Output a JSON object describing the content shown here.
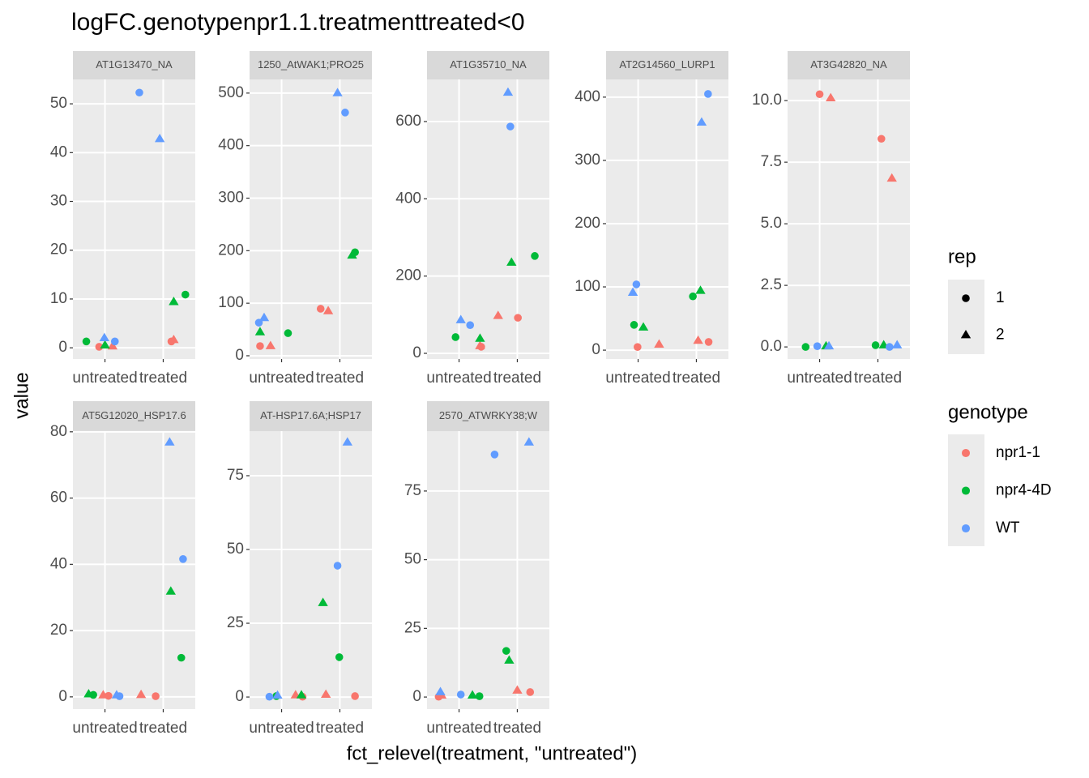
{
  "chart_data": {
    "type": "scatter",
    "title": "logFC.genotypenpr1.1.treatmenttreated<0",
    "x_label": "fct_relevel(treatment, \"untreated\")",
    "y_label": "value",
    "categories": [
      "untreated",
      "treated"
    ],
    "xlim": [
      0.45,
      2.55
    ],
    "grid": true,
    "legends": [
      {
        "title": "rep",
        "entries": [
          {
            "name": "1",
            "shape": "circle"
          },
          {
            "name": "2",
            "shape": "triangle"
          }
        ]
      },
      {
        "title": "genotype",
        "entries": [
          {
            "name": "npr1-1",
            "color": "#F8766D"
          },
          {
            "name": "npr4-4D",
            "color": "#00BA38"
          },
          {
            "name": "WT",
            "color": "#619CFF"
          }
        ]
      }
    ],
    "panels": [
      {
        "strip": "AT1G13470_NA",
        "ylim": [
          -2.3,
          55
        ],
        "yticks": [
          0,
          10,
          20,
          30,
          40,
          50
        ],
        "series": [
          {
            "genotype": "npr1-1",
            "rep": "1",
            "x": [
              0.9,
              2.14
            ],
            "values": [
              0.2,
              1.3
            ]
          },
          {
            "genotype": "npr1-1",
            "rep": "2",
            "x": [
              1.13,
              2.18
            ],
            "values": [
              0.3,
              1.6
            ]
          },
          {
            "genotype": "npr4-4D",
            "rep": "1",
            "x": [
              0.68,
              2.38
            ],
            "values": [
              1.3,
              10.9
            ]
          },
          {
            "genotype": "npr4-4D",
            "rep": "2",
            "x": [
              1.0,
              2.18
            ],
            "values": [
              0.5,
              9.4
            ]
          },
          {
            "genotype": "WT",
            "rep": "1",
            "x": [
              1.17,
              1.59
            ],
            "values": [
              1.3,
              52.3
            ]
          },
          {
            "genotype": "WT",
            "rep": "2",
            "x": [
              0.99,
              1.94
            ],
            "values": [
              2.0,
              42.8
            ]
          }
        ]
      },
      {
        "strip": "1250_AtWAK1;PRO25",
        "ylim": [
          -6.2,
          526
        ],
        "yticks": [
          0,
          100,
          200,
          300,
          400,
          500
        ],
        "series": [
          {
            "genotype": "npr1-1",
            "rep": "1",
            "x": [
              0.63,
              1.67
            ],
            "values": [
              18.5,
              89.5
            ]
          },
          {
            "genotype": "npr1-1",
            "rep": "2",
            "x": [
              0.81,
              1.8
            ],
            "values": [
              18.5,
              85
            ]
          },
          {
            "genotype": "npr4-4D",
            "rep": "1",
            "x": [
              1.11,
              2.26
            ],
            "values": [
              43,
              197
            ]
          },
          {
            "genotype": "npr4-4D",
            "rep": "2",
            "x": [
              0.63,
              2.21
            ],
            "values": [
              45,
              191
            ]
          },
          {
            "genotype": "WT",
            "rep": "1",
            "x": [
              0.61,
              2.09
            ],
            "values": [
              63,
              463
            ]
          },
          {
            "genotype": "WT",
            "rep": "2",
            "x": [
              0.7,
              1.96
            ],
            "values": [
              72,
              500
            ]
          }
        ]
      },
      {
        "strip": "AT1G35710_NA",
        "ylim": [
          -14.7,
          709
        ],
        "yticks": [
          0,
          200,
          400,
          600
        ],
        "series": [
          {
            "genotype": "npr1-1",
            "rep": "1",
            "x": [
              1.38,
              2.01
            ],
            "values": [
              17,
              92
            ]
          },
          {
            "genotype": "npr1-1",
            "rep": "2",
            "x": [
              1.36,
              1.67
            ],
            "values": [
              19,
              97
            ]
          },
          {
            "genotype": "npr4-4D",
            "rep": "1",
            "x": [
              0.94,
              2.3
            ],
            "values": [
              42,
              252
            ]
          },
          {
            "genotype": "npr4-4D",
            "rep": "2",
            "x": [
              1.36,
              1.9
            ],
            "values": [
              38,
              235
            ]
          },
          {
            "genotype": "WT",
            "rep": "1",
            "x": [
              1.19,
              1.88
            ],
            "values": [
              73,
              587
            ]
          },
          {
            "genotype": "WT",
            "rep": "2",
            "x": [
              1.03,
              1.84
            ],
            "values": [
              86,
              675
            ]
          }
        ]
      },
      {
        "strip": "AT2G14560_LURP1",
        "ylim": [
          -14,
          428
        ],
        "yticks": [
          0,
          100,
          200,
          300,
          400
        ],
        "series": [
          {
            "genotype": "npr1-1",
            "rep": "1",
            "x": [
              0.99,
              2.21
            ],
            "values": [
              5,
              13
            ]
          },
          {
            "genotype": "npr1-1",
            "rep": "2",
            "x": [
              1.36,
              2.03
            ],
            "values": [
              9,
              15
            ]
          },
          {
            "genotype": "npr4-4D",
            "rep": "1",
            "x": [
              0.93,
              1.94
            ],
            "values": [
              40,
              85
            ]
          },
          {
            "genotype": "npr4-4D",
            "rep": "2",
            "x": [
              1.09,
              2.07
            ],
            "values": [
              36,
              94
            ]
          },
          {
            "genotype": "WT",
            "rep": "1",
            "x": [
              0.97,
              2.2
            ],
            "values": [
              104,
              405
            ]
          },
          {
            "genotype": "WT",
            "rep": "2",
            "x": [
              0.91,
              2.09
            ],
            "values": [
              91,
              360
            ]
          }
        ]
      },
      {
        "strip": "AT3G42820_NA",
        "ylim": [
          -0.49,
          10.86
        ],
        "yticks": [
          {
            "value": 0,
            "label": "0.0"
          },
          2.5,
          {
            "value": 5,
            "label": "5.0"
          },
          7.5,
          {
            "value": 10,
            "label": "10.0"
          }
        ],
        "series": [
          {
            "genotype": "npr1-1",
            "rep": "1",
            "x": [
              1.0,
              2.06
            ],
            "values": [
              10.26,
              8.45
            ]
          },
          {
            "genotype": "npr1-1",
            "rep": "2",
            "x": [
              1.19,
              2.24
            ],
            "values": [
              10.1,
              6.84
            ]
          },
          {
            "genotype": "npr4-4D",
            "rep": "1",
            "x": [
              0.76,
              1.96
            ],
            "values": [
              0,
              0.07
            ]
          },
          {
            "genotype": "npr4-4D",
            "rep": "2",
            "x": [
              1.11,
              2.1
            ],
            "values": [
              0.03,
              0.07
            ]
          },
          {
            "genotype": "WT",
            "rep": "1",
            "x": [
              0.96,
              2.2
            ],
            "values": [
              0.03,
              0
            ]
          },
          {
            "genotype": "WT",
            "rep": "2",
            "x": [
              1.16,
              2.33
            ],
            "values": [
              0.03,
              0.07
            ]
          }
        ]
      },
      {
        "strip": "AT5G12020_HSP17.6",
        "ylim": [
          -3.7,
          80.2
        ],
        "yticks": [
          0,
          20,
          40,
          60,
          80
        ],
        "series": [
          {
            "genotype": "npr1-1",
            "rep": "1",
            "x": [
              1.06,
              1.87
            ],
            "values": [
              0.3,
              0.2
            ]
          },
          {
            "genotype": "npr1-1",
            "rep": "2",
            "x": [
              0.97,
              1.62
            ],
            "values": [
              0.5,
              0.6
            ]
          },
          {
            "genotype": "npr4-4D",
            "rep": "1",
            "x": [
              0.8,
              2.31
            ],
            "values": [
              0.6,
              11.8
            ]
          },
          {
            "genotype": "npr4-4D",
            "rep": "2",
            "x": [
              0.72,
              2.13
            ],
            "values": [
              0.8,
              31.8
            ]
          },
          {
            "genotype": "WT",
            "rep": "1",
            "x": [
              1.25,
              2.34
            ],
            "values": [
              0.2,
              41.6
            ]
          },
          {
            "genotype": "WT",
            "rep": "2",
            "x": [
              1.2,
              2.11
            ],
            "values": [
              0.5,
              76.8
            ]
          }
        ]
      },
      {
        "strip": "AT-HSP17.6A;HSP17",
        "ylim": [
          -4.1,
          90.1
        ],
        "yticks": [
          0,
          25,
          50,
          75
        ],
        "series": [
          {
            "genotype": "npr1-1",
            "rep": "1",
            "x": [
              1.36,
              2.26
            ],
            "values": [
              0.1,
              0.3
            ]
          },
          {
            "genotype": "npr1-1",
            "rep": "2",
            "x": [
              1.24,
              1.76
            ],
            "values": [
              0.6,
              0.8
            ]
          },
          {
            "genotype": "npr4-4D",
            "rep": "1",
            "x": [
              0.91,
              1.99
            ],
            "values": [
              0.3,
              13.5
            ]
          },
          {
            "genotype": "npr4-4D",
            "rep": "2",
            "x": [
              1.34,
              1.71
            ],
            "values": [
              0.6,
              31.9
            ]
          },
          {
            "genotype": "WT",
            "rep": "1",
            "x": [
              0.79,
              1.96
            ],
            "values": [
              0.1,
              44.5
            ]
          },
          {
            "genotype": "WT",
            "rep": "2",
            "x": [
              0.93,
              2.13
            ],
            "values": [
              0.5,
              86.3
            ]
          }
        ]
      },
      {
        "strip": "2570_ATWRKY38;W",
        "ylim": [
          -4.4,
          96.8
        ],
        "yticks": [
          0,
          25,
          50,
          75
        ],
        "series": [
          {
            "genotype": "npr1-1",
            "rep": "1",
            "x": [
              0.65,
              2.22
            ],
            "values": [
              0.1,
              1.8
            ]
          },
          {
            "genotype": "npr1-1",
            "rep": "2",
            "x": [
              0.7,
              2.0
            ],
            "values": [
              0.6,
              2.4
            ]
          },
          {
            "genotype": "npr4-4D",
            "rep": "1",
            "x": [
              1.35,
              1.81
            ],
            "values": [
              0.3,
              16.8
            ]
          },
          {
            "genotype": "npr4-4D",
            "rep": "2",
            "x": [
              1.23,
              1.86
            ],
            "values": [
              0.6,
              13.3
            ]
          },
          {
            "genotype": "WT",
            "rep": "1",
            "x": [
              1.03,
              1.61
            ],
            "values": [
              0.9,
              88.3
            ]
          },
          {
            "genotype": "WT",
            "rep": "2",
            "x": [
              0.68,
              2.2
            ],
            "values": [
              1.8,
              92.7
            ]
          }
        ]
      }
    ]
  }
}
